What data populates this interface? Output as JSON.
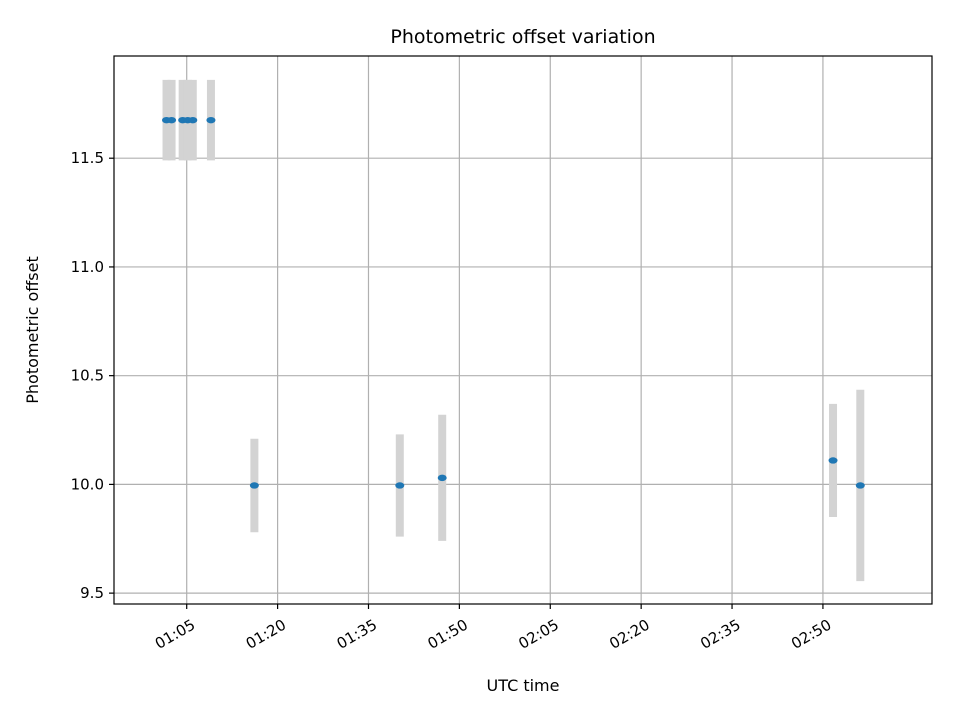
{
  "chart_data": {
    "type": "scatter",
    "title": "Photometric offset variation",
    "xlabel": "UTC time",
    "ylabel": "Photometric offset",
    "xlim": [
      "00:53",
      "03:08"
    ],
    "ylim": [
      9.45,
      11.97
    ],
    "grid": true,
    "x_ticks": [
      "01:05",
      "01:20",
      "01:35",
      "01:50",
      "02:05",
      "02:20",
      "02:35",
      "02:50"
    ],
    "y_ticks": [
      "9.5",
      "10.0",
      "10.5",
      "11.0",
      "11.5"
    ],
    "colors": {
      "point": "#1f77b4",
      "errorbar": "#d3d3d3",
      "grid": "#b0b0b0"
    },
    "points": [
      {
        "x": "01:01:40",
        "y": 11.675,
        "err": 0.185
      },
      {
        "x": "01:02:30",
        "y": 11.675,
        "err": 0.185
      },
      {
        "x": "01:04:20",
        "y": 11.675,
        "err": 0.185
      },
      {
        "x": "01:05:10",
        "y": 11.675,
        "err": 0.185
      },
      {
        "x": "01:06:00",
        "y": 11.675,
        "err": 0.185
      },
      {
        "x": "01:09:00",
        "y": 11.675,
        "err": 0.185
      },
      {
        "x": "01:16:10",
        "y": 9.995,
        "err": 0.215
      },
      {
        "x": "01:40:10",
        "y": 9.995,
        "err": 0.235
      },
      {
        "x": "01:47:10",
        "y": 10.03,
        "err": 0.29
      },
      {
        "x": "02:51:40",
        "y": 10.11,
        "err": 0.26
      },
      {
        "x": "02:56:10",
        "y": 9.995,
        "err": 0.44
      }
    ]
  }
}
